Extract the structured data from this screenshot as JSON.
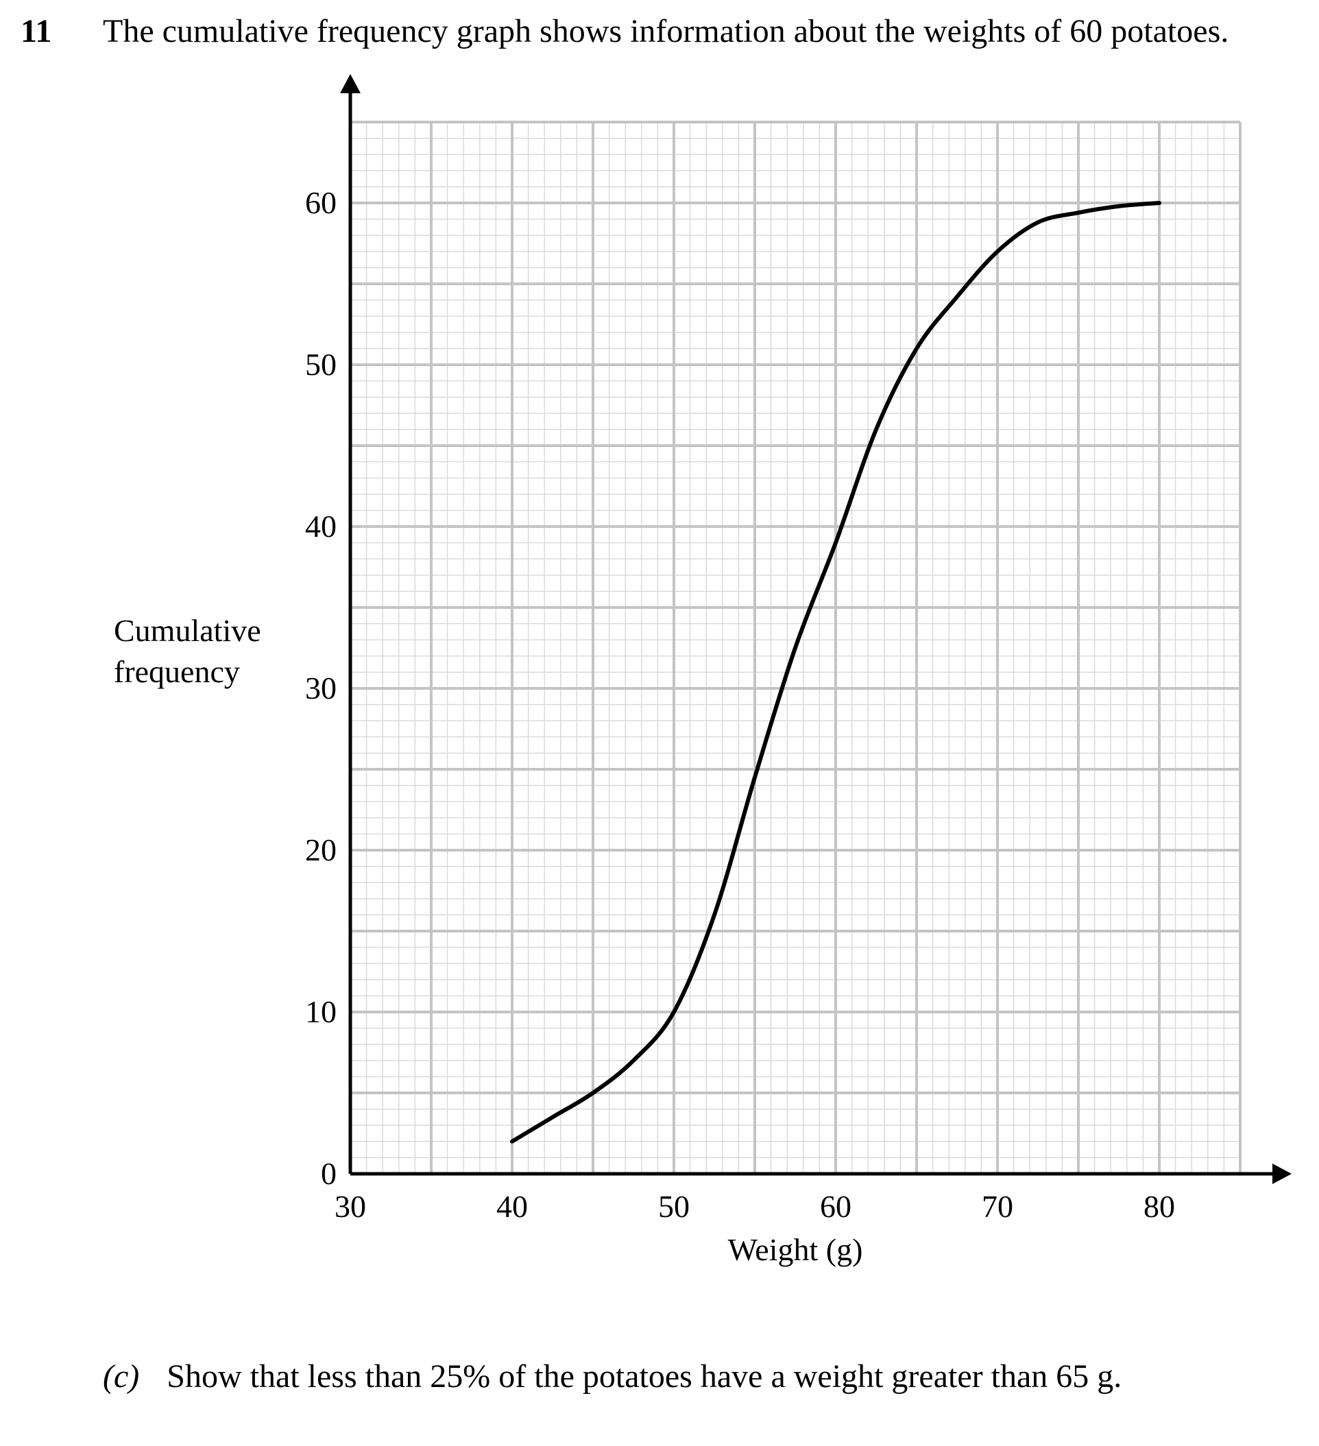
{
  "question": {
    "number": "11",
    "text": "The cumulative frequency graph shows information about the weights of 60 potatoes."
  },
  "part_c": {
    "label": "(c)",
    "text": "Show that less than 25% of the potatoes have a weight greater than 65 g."
  },
  "chart_data": {
    "type": "line",
    "xlabel": "Weight (g)",
    "ylabel": [
      "Cumulative",
      "frequency"
    ],
    "xlim": [
      30,
      85
    ],
    "ylim": [
      0,
      65
    ],
    "x_ticks": [
      30,
      40,
      50,
      60,
      70,
      80
    ],
    "y_ticks": [
      0,
      10,
      20,
      30,
      40,
      50,
      60
    ],
    "grid": true,
    "series": [
      {
        "x": [
          40,
          42.5,
          45,
          47.5,
          50,
          52.5,
          55,
          57.5,
          60,
          62.5,
          65,
          67.5,
          70,
          72.5,
          75,
          77.5,
          80
        ],
        "y": [
          2,
          3.5,
          5,
          7,
          10,
          16,
          24.5,
          32.5,
          39,
          46,
          51,
          54.2,
          57,
          58.8,
          59.4,
          59.8,
          60
        ]
      }
    ]
  }
}
